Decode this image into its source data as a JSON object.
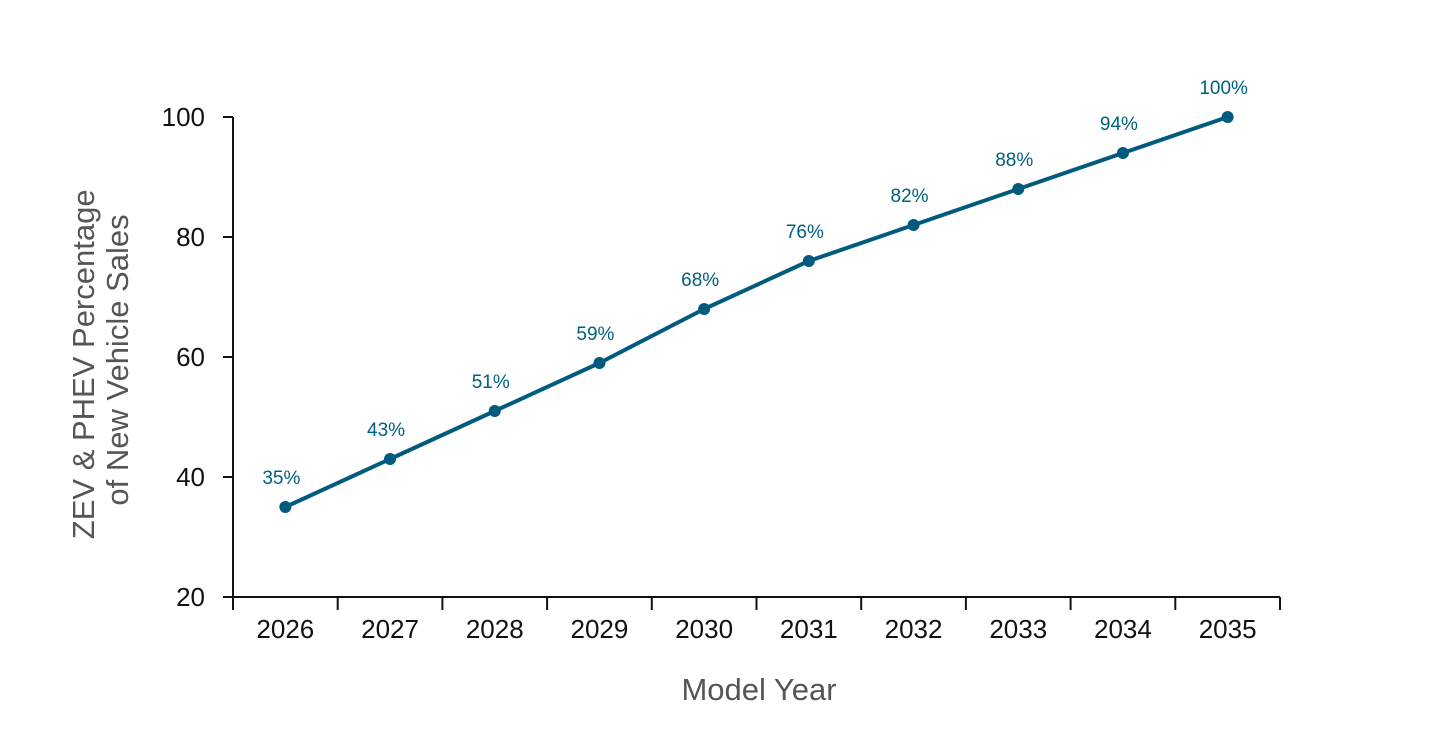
{
  "chart_data": {
    "type": "line",
    "title": "",
    "xlabel": "Model Year",
    "ylabel_lines": [
      "ZEV & PHEV Percentage",
      "of New Vehicle Sales"
    ],
    "categories": [
      "2026",
      "2027",
      "2028",
      "2029",
      "2030",
      "2031",
      "2032",
      "2033",
      "2034",
      "2035"
    ],
    "series": [
      {
        "values": [
          35,
          43,
          51,
          59,
          68,
          76,
          82,
          88,
          94,
          100
        ],
        "labels": [
          "35%",
          "43%",
          "51%",
          "59%",
          "68%",
          "76%",
          "82%",
          "88%",
          "94%",
          "100%"
        ]
      }
    ],
    "ylim": [
      20,
      100
    ],
    "yticks": [
      20,
      40,
      60,
      80,
      100
    ],
    "grid": false,
    "legend": "none",
    "colors": {
      "line": "#005b7f",
      "label": "#00607f",
      "axis": "#111111",
      "axis_title": "#555555"
    }
  }
}
